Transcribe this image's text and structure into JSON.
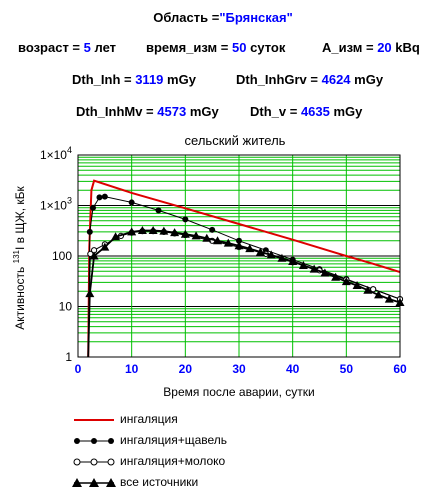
{
  "header": {
    "region_label": "Область = ",
    "region_value": "\"Брянская\"",
    "age_label": "возраст = ",
    "age_value": "5",
    "age_unit": "лет",
    "time_label": "время_изм = ",
    "time_value": "50",
    "time_unit": "суток",
    "a_label": "A_изм = ",
    "a_value": "20",
    "a_unit": "kBq",
    "dth_inh_label": "Dth_Inh = ",
    "dth_inh_value": "3119",
    "dth_inh_unit": "mGy",
    "dth_inhgrv_label": "Dth_InhGrv = ",
    "dth_inhgrv_value": "4624",
    "dth_inhgrv_unit": "mGy",
    "dth_inhmv_label": "Dth_InhMv = ",
    "dth_inhmv_value": "4573",
    "dth_inhmv_unit": "mGy",
    "dth_v_label": "Dth_v = ",
    "dth_v_value": "4635",
    "dth_v_unit": "mGy"
  },
  "chart_data": {
    "type": "line",
    "title": "сельский житель",
    "xlabel": "Время после аварии, сутки",
    "ylabel_prefix": "Активность ",
    "ylabel_sup": "131",
    "ylabel_suffix": "I в ЩЖ, кБк",
    "xlim": [
      0,
      60
    ],
    "ylim": [
      1,
      10000
    ],
    "y_scale": "log",
    "x_ticks": [
      "0",
      "10",
      "20",
      "30",
      "40",
      "50",
      "60"
    ],
    "y_ticks": [
      {
        "base": "1",
        "exp": ""
      },
      {
        "base": "10",
        "exp": ""
      },
      {
        "base": "100",
        "exp": ""
      },
      {
        "base": "1×10",
        "exp": "3"
      },
      {
        "base": "1×10",
        "exp": "4"
      }
    ],
    "grid": true,
    "series": [
      {
        "name": "ингаляция",
        "color": "#dd0000",
        "marker": "none",
        "x": [
          1.9,
          2.1,
          2.5,
          3,
          10,
          20,
          30,
          40,
          50,
          55,
          60
        ],
        "y": [
          1,
          150,
          2000,
          3100,
          1780,
          880,
          430,
          210,
          100,
          70,
          48
        ]
      },
      {
        "name": "ингаляция+щавель",
        "color": "#000000",
        "marker": "filled-circle",
        "x": [
          1.9,
          2.2,
          2.8,
          4,
          5,
          10,
          15,
          20,
          25,
          30,
          35,
          40,
          45,
          50,
          55,
          60
        ],
        "y": [
          1,
          300,
          900,
          1450,
          1500,
          1150,
          800,
          530,
          330,
          200,
          130,
          85,
          55,
          35,
          22,
          14
        ]
      },
      {
        "name": "ингаляция+молоко",
        "color": "#000000",
        "marker": "open-circle",
        "x": [
          1.9,
          2.3,
          3,
          5,
          8,
          10,
          12,
          14,
          16,
          18,
          20,
          25,
          30,
          35,
          40,
          45,
          50,
          55,
          60
        ],
        "y": [
          1,
          110,
          130,
          170,
          250,
          290,
          310,
          310,
          300,
          280,
          260,
          200,
          150,
          110,
          75,
          52,
          34,
          22,
          14
        ]
      },
      {
        "name": "все источники",
        "color": "#000000",
        "marker": "filled-triangle",
        "x": [
          1.9,
          2.2,
          3,
          5,
          7,
          10,
          12,
          14,
          16,
          18,
          20,
          22,
          24,
          26,
          28,
          30,
          32,
          34,
          36,
          38,
          40,
          42,
          44,
          46,
          48,
          50,
          52,
          54,
          56,
          58,
          60
        ],
        "y": [
          1,
          18,
          100,
          150,
          240,
          300,
          320,
          320,
          310,
          290,
          270,
          250,
          225,
          200,
          180,
          160,
          140,
          120,
          105,
          90,
          78,
          65,
          55,
          46,
          38,
          31,
          26,
          21,
          17,
          14,
          12
        ]
      }
    ]
  }
}
